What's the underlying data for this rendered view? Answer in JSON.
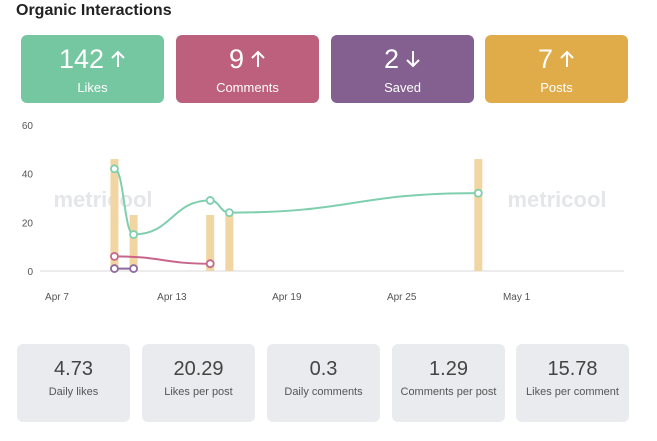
{
  "header": {
    "title": "Organic Interactions"
  },
  "kpis": [
    {
      "value": "142",
      "label": "Likes",
      "trend": "up",
      "color": "#74c7a0"
    },
    {
      "value": "9",
      "label": "Comments",
      "trend": "up",
      "color": "#bd607d"
    },
    {
      "value": "2",
      "label": "Saved",
      "trend": "down",
      "color": "#83608f"
    },
    {
      "value": "7",
      "label": "Posts",
      "trend": "up",
      "color": "#e0ac4a"
    }
  ],
  "watermark": "metricool",
  "chart_data": {
    "type": "line",
    "y_ticks": [
      "60",
      "40",
      "20",
      "0"
    ],
    "ylim": [
      0,
      60
    ],
    "x_ticks": [
      "Apr 7",
      "Apr 13",
      "Apr 19",
      "Apr 25",
      "May 1"
    ],
    "grid": false,
    "series": [
      {
        "kind": "bar",
        "color": "#f1d6a3",
        "points": [
          {
            "x": "Apr 10",
            "y": 46
          },
          {
            "x": "Apr 11",
            "y": 23
          },
          {
            "x": "Apr 15",
            "y": 23
          },
          {
            "x": "Apr 16",
            "y": 23
          },
          {
            "x": "Apr 29",
            "y": 46
          }
        ]
      },
      {
        "kind": "line",
        "color": "#7fcfae",
        "points": [
          {
            "x": "Apr 10",
            "y": 42
          },
          {
            "x": "Apr 11",
            "y": 15
          },
          {
            "x": "Apr 15",
            "y": 29
          },
          {
            "x": "Apr 16",
            "y": 24
          },
          {
            "x": "Apr 29",
            "y": 32
          }
        ]
      },
      {
        "kind": "line",
        "color": "#c7668a",
        "points": [
          {
            "x": "Apr 10",
            "y": 6
          },
          {
            "x": "Apr 15",
            "y": 3
          }
        ]
      },
      {
        "kind": "line",
        "color": "#8e6a9e",
        "points": [
          {
            "x": "Apr 10",
            "y": 1
          },
          {
            "x": "Apr 11",
            "y": 1
          }
        ]
      }
    ]
  },
  "stats": [
    {
      "value": "4.73",
      "label": "Daily likes"
    },
    {
      "value": "20.29",
      "label": "Likes per post"
    },
    {
      "value": "0.3",
      "label": "Daily comments"
    },
    {
      "value": "1.29",
      "label": "Comments per post"
    },
    {
      "value": "15.78",
      "label": "Likes per comment"
    }
  ]
}
